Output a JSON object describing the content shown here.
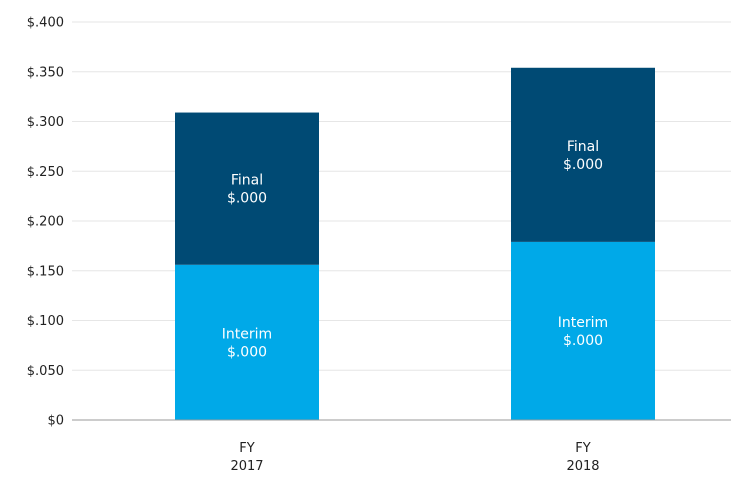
{
  "chart_data": {
    "type": "bar",
    "stacked": true,
    "categories": [
      {
        "line1": "FY",
        "line2": "2017"
      },
      {
        "line1": "FY",
        "line2": "2018"
      }
    ],
    "series": [
      {
        "name": "Interim",
        "color": "#00a9e8",
        "values": [
          0.156,
          0.179
        ],
        "label_value": "$.000"
      },
      {
        "name": "Final",
        "color": "#004a74",
        "values": [
          0.153,
          0.175
        ],
        "label_value": "$.000"
      }
    ],
    "y_ticks": [
      "$0",
      "$.050",
      "$.100",
      "$.150",
      "$.200",
      "$.250",
      "$.300",
      "$.350",
      "$.400"
    ],
    "ylim": [
      0,
      0.4
    ],
    "grid": true,
    "legend": "none",
    "title": "",
    "xlabel": "",
    "ylabel": ""
  }
}
